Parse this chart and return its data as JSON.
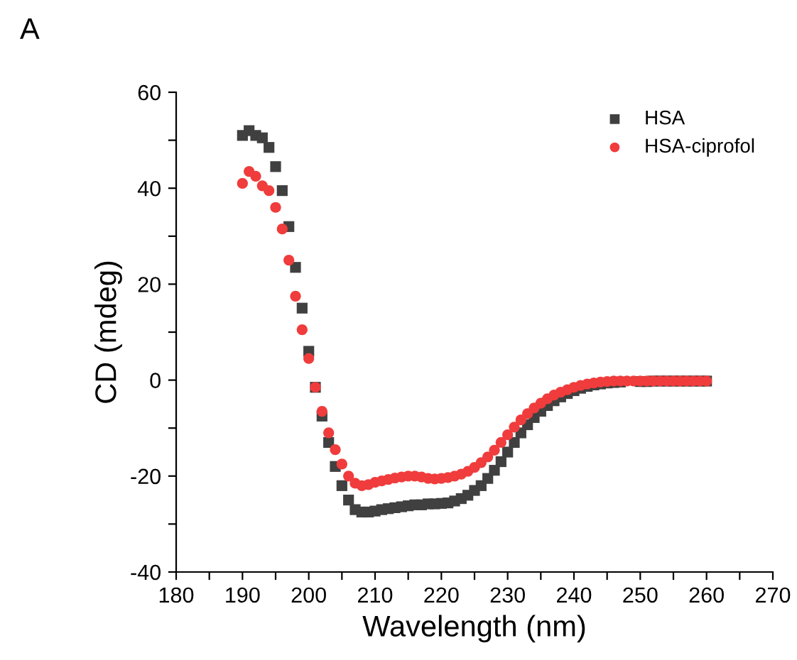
{
  "chart_data": {
    "type": "scatter",
    "xlabel": "Wavelength (nm)",
    "ylabel": "CD (mdeg)",
    "annotations": [
      "A"
    ],
    "x": [
      190,
      191,
      192,
      193,
      194,
      195,
      196,
      197,
      198,
      199,
      200,
      201,
      202,
      203,
      204,
      205,
      206,
      207,
      208,
      209,
      210,
      211,
      212,
      213,
      214,
      215,
      216,
      217,
      218,
      219,
      220,
      221,
      222,
      223,
      224,
      225,
      226,
      227,
      228,
      229,
      230,
      231,
      232,
      233,
      234,
      235,
      236,
      237,
      238,
      239,
      240,
      241,
      242,
      243,
      244,
      245,
      246,
      247,
      248,
      249,
      250,
      251,
      252,
      253,
      254,
      255,
      256,
      257,
      258,
      259,
      260
    ],
    "series": [
      {
        "name": "HSA",
        "color": "#404040",
        "marker": "square",
        "values": [
          51,
          52,
          51,
          50.5,
          48.5,
          44.5,
          39.5,
          32,
          23.5,
          15,
          6,
          -1.5,
          -7.5,
          -13,
          -18,
          -22,
          -25,
          -27,
          -27.5,
          -27.5,
          -27.3,
          -27,
          -26.8,
          -26.6,
          -26.4,
          -26.2,
          -26,
          -26,
          -25.8,
          -25.8,
          -25.7,
          -25.6,
          -25.2,
          -24.7,
          -24,
          -23,
          -22,
          -20.5,
          -18.8,
          -17,
          -15,
          -13,
          -11,
          -9.3,
          -7.8,
          -6.5,
          -5.3,
          -4.3,
          -3.5,
          -2.8,
          -2.2,
          -1.7,
          -1.3,
          -1,
          -0.8,
          -0.6,
          -0.5,
          -0.4,
          null,
          null,
          -0.3,
          -0.3,
          -0.2,
          -0.2,
          -0.2,
          -0.2,
          -0.2,
          -0.2,
          -0.2,
          -0.2,
          -0.2
        ]
      },
      {
        "name": "HSA-ciprofol",
        "color": "#f03c3c",
        "marker": "circle",
        "values": [
          41,
          43.5,
          42.5,
          40.5,
          39.5,
          36,
          31.5,
          25,
          17.5,
          10.5,
          4.5,
          -1.5,
          -6.5,
          -11,
          -14.5,
          -17.5,
          -20,
          -21.5,
          -22,
          -21.8,
          -21.3,
          -21,
          -20.7,
          -20.4,
          -20.2,
          -20,
          -20,
          -20.2,
          -20.5,
          -20.6,
          -20.5,
          -20.3,
          -20,
          -19.6,
          -19,
          -18.2,
          -17.2,
          -16,
          -14.6,
          -13,
          -11.4,
          -9.8,
          -8.3,
          -7,
          -5.8,
          -4.8,
          -3.9,
          -3.1,
          -2.5,
          -2,
          -1.5,
          -1.1,
          -0.8,
          -0.6,
          -0.4,
          -0.3,
          -0.2,
          -0.2,
          -0.2,
          -0.2,
          -0.2,
          -0.2,
          -0.2,
          -0.2,
          -0.2,
          -0.2,
          -0.2,
          -0.2,
          -0.2,
          -0.2,
          -0.2
        ]
      }
    ],
    "xlim": [
      180,
      270
    ],
    "ylim": [
      -40,
      60
    ],
    "xticks": [
      180,
      {
        "value": 185,
        "label": null
      },
      190,
      {
        "value": 195,
        "label": null
      },
      200,
      {
        "value": 205,
        "label": null
      },
      210,
      {
        "value": 215,
        "label": null
      },
      220,
      {
        "value": 225,
        "label": null
      },
      230,
      {
        "value": 235,
        "label": null
      },
      240,
      {
        "value": 245,
        "label": null
      },
      250,
      {
        "value": 255,
        "label": null
      },
      260,
      {
        "value": 265,
        "label": null
      },
      270
    ],
    "yticks": [
      -40,
      {
        "value": -30,
        "label": null
      },
      -20,
      {
        "value": -10,
        "label": null
      },
      0,
      {
        "value": 10,
        "label": null
      },
      20,
      {
        "value": 30,
        "label": null
      },
      40,
      {
        "value": 50,
        "label": null
      },
      60
    ],
    "legend": "top right",
    "grid": false
  }
}
